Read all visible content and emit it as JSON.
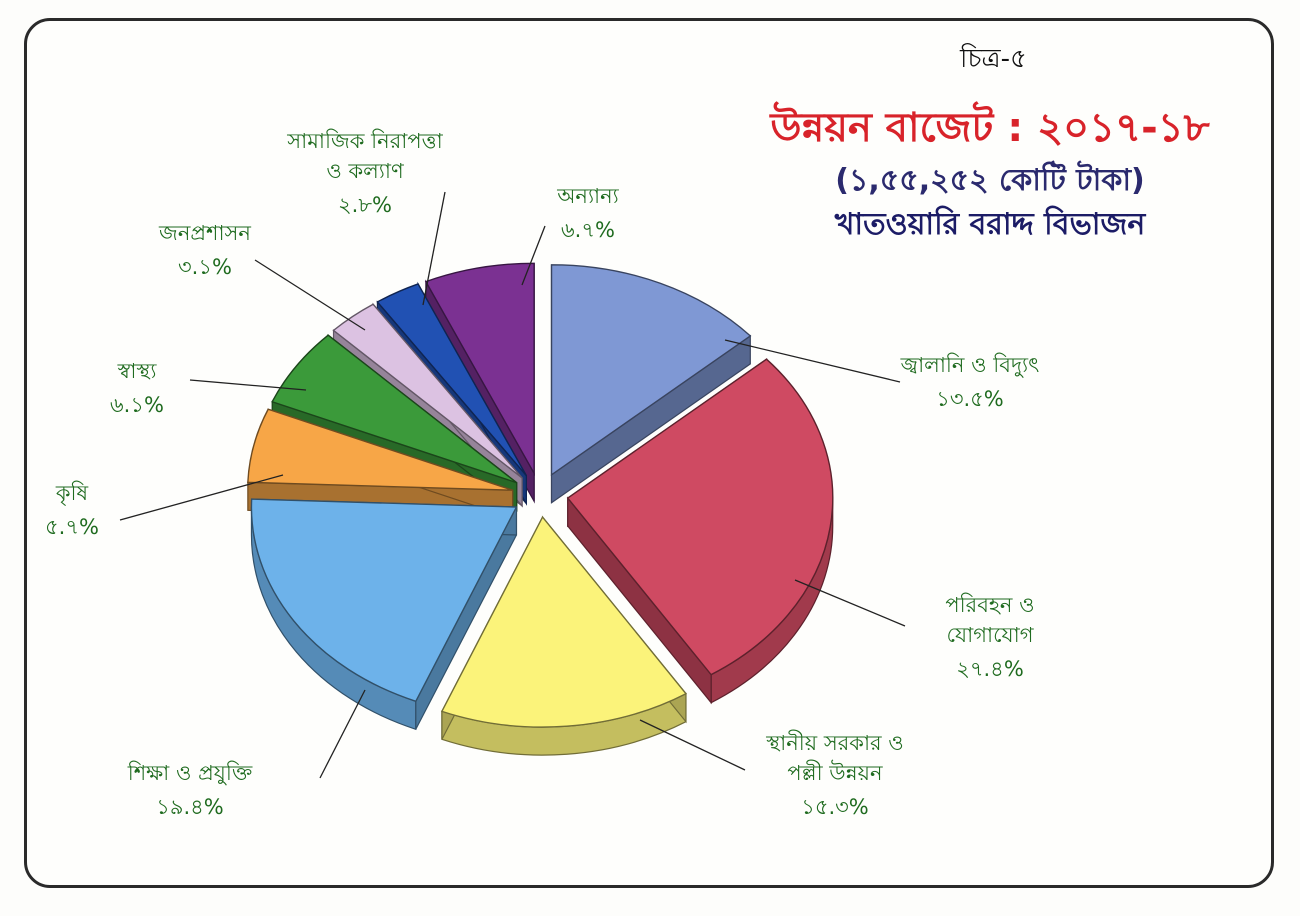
{
  "figure_no": "চিত্র-৫",
  "chart_data": {
    "type": "pie",
    "title": "উন্নয়ন বাজেট : ২০১৭-১৮",
    "subtitle": "(১,৫৫,২৫২ কোটি টাকা)",
    "caption": "খাতওয়ারি বরাদ্দ বিভাজন",
    "three_d": true,
    "exploded": true,
    "slices": [
      {
        "label": [
          "জ্বালানি ও বিদ্যুৎ"
        ],
        "value": 13.5,
        "pct_label": "১৩.৫%",
        "color": "#7f98d4"
      },
      {
        "label": [
          "পরিবহন ও",
          "যোগাযোগ"
        ],
        "value": 27.4,
        "pct_label": "২৭.৪%",
        "color": "#cf4a62"
      },
      {
        "label": [
          "স্থানীয় সরকার ও",
          "পল্লী উন্নয়ন"
        ],
        "value": 15.3,
        "pct_label": "১৫.৩%",
        "color": "#fbf37a"
      },
      {
        "label": [
          "শিক্ষা ও প্রযুক্তি"
        ],
        "value": 19.4,
        "pct_label": "১৯.৪%",
        "color": "#6db2ea"
      },
      {
        "label": [
          "কৃষি"
        ],
        "value": 5.7,
        "pct_label": "৫.৭%",
        "color": "#f7a647"
      },
      {
        "label": [
          "স্বাস্থ্য"
        ],
        "value": 6.1,
        "pct_label": "৬.১%",
        "color": "#3b9a3a"
      },
      {
        "label": [
          "জনপ্রশাসন"
        ],
        "value": 3.1,
        "pct_label": "৩.১%",
        "color": "#dcc2e2"
      },
      {
        "label": [
          "সামাজিক নিরাপত্তা",
          "ও কল্যাণ"
        ],
        "value": 2.8,
        "pct_label": "২.৮%",
        "color": "#2151b3"
      },
      {
        "label": [
          "অন্যান্য"
        ],
        "value": 6.7,
        "pct_label": "৬.৭%",
        "color": "#7b3192"
      }
    ]
  }
}
